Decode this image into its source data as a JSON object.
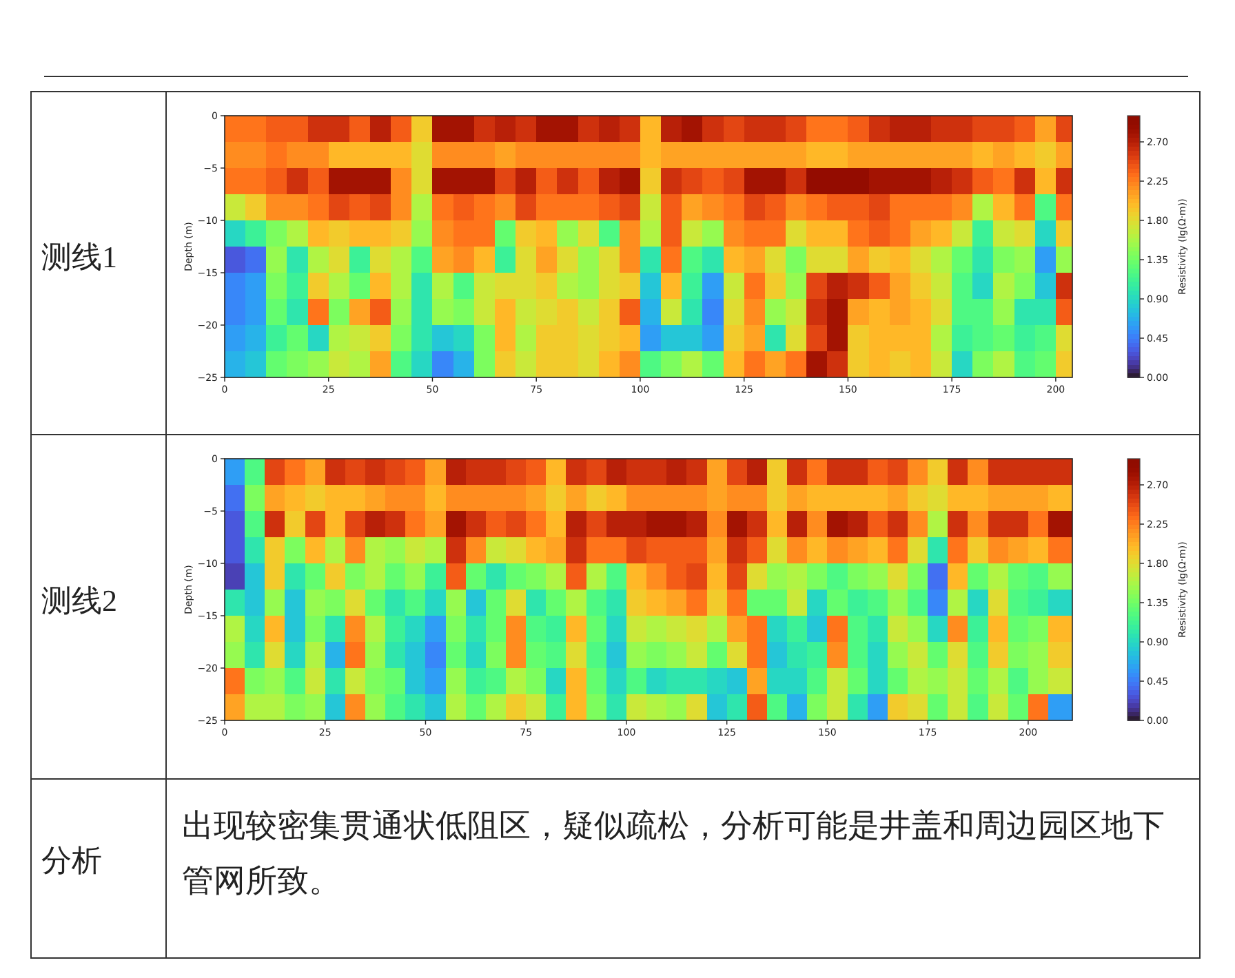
{
  "chart_data": [
    {
      "type": "scatter",
      "marker": "square",
      "title": "测线1",
      "ylabel": "Depth (m)",
      "clabel": "Resistivity (lg(Ω·m))",
      "x": [
        2.5,
        7.5,
        12.5,
        17.5,
        22.5,
        27.5,
        32.5,
        37.5,
        42.5,
        47.5,
        52.5,
        57.5,
        62.5,
        67.5,
        72.5,
        77.5,
        82.5,
        87.5,
        92.5,
        97.5,
        102.5,
        107.5,
        112.5,
        117.5,
        122.5,
        127.5,
        132.5,
        137.5,
        142.5,
        147.5,
        152.5,
        157.5,
        162.5,
        167.5,
        172.5,
        177.5,
        182.5,
        187.5,
        192.5,
        197.5,
        202.5,
        2.5,
        7.5,
        12.5,
        17.5,
        22.5,
        27.5,
        32.5,
        37.5,
        42.5,
        47.5,
        52.5,
        57.5,
        62.5,
        67.5,
        72.5,
        77.5,
        82.5,
        87.5,
        92.5,
        97.5,
        102.5,
        107.5,
        112.5,
        117.5,
        122.5,
        127.5,
        132.5,
        137.5,
        142.5,
        147.5,
        152.5,
        157.5,
        162.5,
        167.5,
        172.5,
        177.5,
        182.5,
        187.5,
        192.5,
        197.5,
        202.5,
        2.5,
        7.5,
        12.5,
        17.5,
        22.5,
        27.5,
        32.5,
        37.5,
        42.5,
        47.5,
        52.5,
        57.5,
        62.5,
        67.5,
        72.5,
        77.5,
        82.5,
        87.5,
        92.5,
        97.5,
        102.5,
        107.5,
        112.5,
        117.5,
        122.5,
        127.5,
        132.5,
        137.5,
        142.5,
        147.5,
        152.5,
        157.5,
        162.5,
        167.5,
        172.5,
        177.5,
        182.5,
        187.5,
        192.5,
        197.5,
        202.5,
        2.5,
        7.5,
        12.5,
        17.5,
        22.5,
        27.5,
        32.5,
        37.5,
        42.5,
        47.5,
        52.5,
        57.5,
        62.5,
        67.5,
        72.5,
        77.5,
        82.5,
        87.5,
        92.5,
        97.5,
        102.5,
        107.5,
        112.5,
        117.5,
        122.5,
        127.5,
        132.5,
        137.5,
        142.5,
        147.5,
        152.5,
        157.5,
        162.5,
        167.5,
        172.5,
        177.5,
        182.5,
        187.5,
        192.5,
        197.5,
        202.5,
        2.5,
        7.5,
        12.5,
        17.5,
        22.5,
        27.5,
        32.5,
        37.5,
        42.5,
        47.5,
        52.5,
        57.5,
        62.5,
        67.5,
        72.5,
        77.5,
        82.5,
        87.5,
        92.5,
        97.5,
        102.5,
        107.5,
        112.5,
        117.5,
        122.5,
        127.5,
        132.5,
        137.5,
        142.5,
        147.5,
        152.5,
        157.5,
        162.5,
        167.5,
        172.5,
        177.5,
        182.5,
        187.5,
        192.5,
        197.5,
        202.5,
        2.5,
        7.5,
        12.5,
        17.5,
        22.5,
        27.5,
        32.5,
        37.5,
        42.5,
        47.5,
        52.5,
        57.5,
        62.5,
        67.5,
        72.5,
        77.5,
        82.5,
        87.5,
        92.5,
        97.5,
        102.5,
        107.5,
        112.5,
        117.5,
        122.5,
        127.5,
        132.5,
        137.5,
        142.5,
        147.5,
        152.5,
        157.5,
        162.5,
        167.5,
        172.5,
        177.5,
        182.5,
        187.5,
        192.5,
        197.5,
        202.5,
        2.5,
        7.5,
        12.5,
        17.5,
        22.5,
        27.5,
        32.5,
        37.5,
        42.5,
        47.5,
        52.5,
        57.5,
        62.5,
        67.5,
        72.5,
        77.5,
        82.5,
        87.5,
        92.5,
        97.5,
        102.5,
        107.5,
        112.5,
        117.5,
        122.5,
        127.5,
        132.5,
        137.5,
        142.5,
        147.5,
        152.5,
        157.5,
        162.5,
        167.5,
        172.5,
        177.5,
        182.5,
        187.5,
        192.5,
        197.5,
        202.5,
        2.5,
        7.5,
        12.5,
        17.5,
        22.5,
        27.5,
        32.5,
        37.5,
        42.5,
        47.5,
        52.5,
        57.5,
        62.5,
        67.5,
        72.5,
        77.5,
        82.5,
        87.5,
        92.5,
        97.5,
        102.5,
        107.5,
        112.5,
        117.5,
        122.5,
        127.5,
        132.5,
        137.5,
        142.5,
        147.5,
        152.5,
        157.5,
        162.5,
        167.5,
        172.5,
        177.5,
        182.5,
        187.5,
        192.5,
        197.5,
        202.5,
        2.5,
        7.5,
        12.5,
        17.5,
        22.5,
        27.5,
        32.5,
        37.5,
        42.5,
        47.5,
        52.5,
        57.5,
        62.5,
        67.5,
        72.5,
        77.5,
        82.5,
        87.5,
        92.5,
        97.5,
        102.5,
        107.5,
        112.5,
        117.5,
        122.5,
        127.5,
        132.5,
        137.5,
        142.5,
        147.5,
        152.5,
        157.5,
        162.5,
        167.5,
        172.5,
        177.5,
        182.5,
        187.5,
        192.5,
        197.5,
        202.5,
        2.5,
        7.5,
        12.5,
        17.5,
        22.5,
        27.5,
        32.5,
        37.5,
        42.5,
        47.5,
        52.5,
        57.5,
        62.5,
        67.5,
        72.5,
        77.5,
        82.5,
        87.5,
        92.5,
        97.5,
        102.5,
        107.5,
        112.5,
        117.5,
        122.5,
        127.5,
        132.5,
        137.5,
        142.5,
        147.5,
        152.5,
        157.5,
        162.5,
        167.5,
        172.5,
        177.5,
        182.5,
        187.5,
        192.5,
        197.5,
        202.5
      ],
      "values": [
        -1.25,
        -1.25,
        -1.25,
        -1.25,
        -1.25,
        -1.25,
        -1.25,
        -1.25,
        -1.25,
        -1.25,
        -1.25,
        -1.25,
        -1.25,
        -1.25,
        -1.25,
        -1.25,
        -1.25,
        -1.25,
        -1.25,
        -1.25,
        -1.25,
        -1.25,
        -1.25,
        -1.25,
        -1.25,
        -1.25,
        -1.25,
        -1.25,
        -1.25,
        -1.25,
        -1.25,
        -1.25,
        -1.25,
        -1.25,
        -1.25,
        -1.25,
        -1.25,
        -1.25,
        -1.25,
        -1.25,
        -1.25,
        -3.75,
        -3.75,
        -3.75,
        -3.75,
        -3.75,
        -3.75,
        -3.75,
        -3.75,
        -3.75,
        -3.75,
        -3.75,
        -3.75,
        -3.75,
        -3.75,
        -3.75,
        -3.75,
        -3.75,
        -3.75,
        -3.75,
        -3.75,
        -3.75,
        -3.75,
        -3.75,
        -3.75,
        -3.75,
        -3.75,
        -3.75,
        -3.75,
        -3.75,
        -3.75,
        -3.75,
        -3.75,
        -3.75,
        -3.75,
        -3.75,
        -3.75,
        -3.75,
        -3.75,
        -3.75,
        -3.75,
        -3.75,
        -6.25,
        -6.25,
        -6.25,
        -6.25,
        -6.25,
        -6.25,
        -6.25,
        -6.25,
        -6.25,
        -6.25,
        -6.25,
        -6.25,
        -6.25,
        -6.25,
        -6.25,
        -6.25,
        -6.25,
        -6.25,
        -6.25,
        -6.25,
        -6.25,
        -6.25,
        -6.25,
        -6.25,
        -6.25,
        -6.25,
        -6.25,
        -6.25,
        -6.25,
        -6.25,
        -6.25,
        -6.25,
        -6.25,
        -6.25,
        -6.25,
        -6.25,
        -6.25,
        -6.25,
        -6.25,
        -6.25,
        -6.25,
        -8.75,
        -8.75,
        -8.75,
        -8.75,
        -8.75,
        -8.75,
        -8.75,
        -8.75,
        -8.75,
        -8.75,
        -8.75,
        -8.75,
        -8.75,
        -8.75,
        -8.75,
        -8.75,
        -8.75,
        -8.75,
        -8.75,
        -8.75,
        -8.75,
        -8.75,
        -8.75,
        -8.75,
        -8.75,
        -8.75,
        -8.75,
        -8.75,
        -8.75,
        -8.75,
        -8.75,
        -8.75,
        -8.75,
        -8.75,
        -8.75,
        -8.75,
        -8.75,
        -8.75,
        -8.75,
        -8.75,
        -8.75,
        -11.25,
        -11.25,
        -11.25,
        -11.25,
        -11.25,
        -11.25,
        -11.25,
        -11.25,
        -11.25,
        -11.25,
        -11.25,
        -11.25,
        -11.25,
        -11.25,
        -11.25,
        -11.25,
        -11.25,
        -11.25,
        -11.25,
        -11.25,
        -11.25,
        -11.25,
        -11.25,
        -11.25,
        -11.25,
        -11.25,
        -11.25,
        -11.25,
        -11.25,
        -11.25,
        -11.25,
        -11.25,
        -11.25,
        -11.25,
        -11.25,
        -11.25,
        -11.25,
        -11.25,
        -11.25,
        -11.25,
        -11.25,
        -13.75,
        -13.75,
        -13.75,
        -13.75,
        -13.75,
        -13.75,
        -13.75,
        -13.75,
        -13.75,
        -13.75,
        -13.75,
        -13.75,
        -13.75,
        -13.75,
        -13.75,
        -13.75,
        -13.75,
        -13.75,
        -13.75,
        -13.75,
        -13.75,
        -13.75,
        -13.75,
        -13.75,
        -13.75,
        -13.75,
        -13.75,
        -13.75,
        -13.75,
        -13.75,
        -13.75,
        -13.75,
        -13.75,
        -13.75,
        -13.75,
        -13.75,
        -13.75,
        -13.75,
        -13.75,
        -13.75,
        -13.75,
        -16.25,
        -16.25,
        -16.25,
        -16.25,
        -16.25,
        -16.25,
        -16.25,
        -16.25,
        -16.25,
        -16.25,
        -16.25,
        -16.25,
        -16.25,
        -16.25,
        -16.25,
        -16.25,
        -16.25,
        -16.25,
        -16.25,
        -16.25,
        -16.25,
        -16.25,
        -16.25,
        -16.25,
        -16.25,
        -16.25,
        -16.25,
        -16.25,
        -16.25,
        -16.25,
        -16.25,
        -16.25,
        -16.25,
        -16.25,
        -16.25,
        -16.25,
        -16.25,
        -16.25,
        -16.25,
        -16.25,
        -16.25,
        -18.75,
        -18.75,
        -18.75,
        -18.75,
        -18.75,
        -18.75,
        -18.75,
        -18.75,
        -18.75,
        -18.75,
        -18.75,
        -18.75,
        -18.75,
        -18.75,
        -18.75,
        -18.75,
        -18.75,
        -18.75,
        -18.75,
        -18.75,
        -18.75,
        -18.75,
        -18.75,
        -18.75,
        -18.75,
        -18.75,
        -18.75,
        -18.75,
        -18.75,
        -18.75,
        -18.75,
        -18.75,
        -18.75,
        -18.75,
        -18.75,
        -18.75,
        -18.75,
        -18.75,
        -18.75,
        -18.75,
        -18.75,
        -21.25,
        -21.25,
        -21.25,
        -21.25,
        -21.25,
        -21.25,
        -21.25,
        -21.25,
        -21.25,
        -21.25,
        -21.25,
        -21.25,
        -21.25,
        -21.25,
        -21.25,
        -21.25,
        -21.25,
        -21.25,
        -21.25,
        -21.25,
        -21.25,
        -21.25,
        -21.25,
        -21.25,
        -21.25,
        -21.25,
        -21.25,
        -21.25,
        -21.25,
        -21.25,
        -21.25,
        -21.25,
        -21.25,
        -21.25,
        -21.25,
        -21.25,
        -21.25,
        -21.25,
        -21.25,
        -21.25,
        -21.25,
        -23.75,
        -23.75,
        -23.75,
        -23.75,
        -23.75,
        -23.75,
        -23.75,
        -23.75,
        -23.75,
        -23.75,
        -23.75,
        -23.75,
        -23.75,
        -23.75,
        -23.75,
        -23.75,
        -23.75,
        -23.75,
        -23.75,
        -23.75,
        -23.75,
        -23.75,
        -23.75,
        -23.75,
        -23.75,
        -23.75,
        -23.75,
        -23.75,
        -23.75,
        -23.75,
        -23.75,
        -23.75,
        -23.75,
        -23.75,
        -23.75,
        -23.75,
        -23.75,
        -23.75,
        -23.75,
        -23.75,
        -23.75
      ],
      "cvalues": [
        2.3,
        2.3,
        2.4,
        2.4,
        2.6,
        2.6,
        2.4,
        2.7,
        2.4,
        1.9,
        2.8,
        2.8,
        2.6,
        2.7,
        2.6,
        2.8,
        2.8,
        2.6,
        2.7,
        2.6,
        2.0,
        2.7,
        2.8,
        2.6,
        2.5,
        2.6,
        2.6,
        2.5,
        2.3,
        2.3,
        2.4,
        2.6,
        2.7,
        2.7,
        2.6,
        2.6,
        2.5,
        2.5,
        2.4,
        2.1,
        2.5,
        2.2,
        2.2,
        2.3,
        2.2,
        2.2,
        2.0,
        2.0,
        2.0,
        2.0,
        1.8,
        2.2,
        2.2,
        2.2,
        2.1,
        2.2,
        2.2,
        2.2,
        2.2,
        2.2,
        2.2,
        2.0,
        2.1,
        2.1,
        2.1,
        2.1,
        2.1,
        2.1,
        2.1,
        2.0,
        2.0,
        2.1,
        2.1,
        2.1,
        2.1,
        2.1,
        2.1,
        2.0,
        2.1,
        2.0,
        1.9,
        2.1,
        2.3,
        2.3,
        2.4,
        2.6,
        2.4,
        2.8,
        2.8,
        2.8,
        2.2,
        1.8,
        2.8,
        2.8,
        2.8,
        2.5,
        2.7,
        2.4,
        2.6,
        2.4,
        2.7,
        2.8,
        1.9,
        2.6,
        2.5,
        2.4,
        2.5,
        2.8,
        2.8,
        2.6,
        2.9,
        2.9,
        2.9,
        2.8,
        2.8,
        2.8,
        2.7,
        2.6,
        2.4,
        2.3,
        2.6,
        2.0,
        2.6,
        1.7,
        1.9,
        2.2,
        2.2,
        2.3,
        2.5,
        2.4,
        2.5,
        2.2,
        1.6,
        2.3,
        2.4,
        2.3,
        2.2,
        2.5,
        2.3,
        2.3,
        2.3,
        2.4,
        2.5,
        1.7,
        2.4,
        2.1,
        2.2,
        2.3,
        2.5,
        2.4,
        2.2,
        2.3,
        2.4,
        2.4,
        2.5,
        2.3,
        2.3,
        2.3,
        2.2,
        1.6,
        2.0,
        2.3,
        1.2,
        2.3,
        0.9,
        1.1,
        1.4,
        1.6,
        2.0,
        1.9,
        2.0,
        2.0,
        1.9,
        1.5,
        2.2,
        2.3,
        2.3,
        1.3,
        1.9,
        2.0,
        1.5,
        1.8,
        1.2,
        2.2,
        1.6,
        2.4,
        1.7,
        1.5,
        2.2,
        2.3,
        2.3,
        1.8,
        2.0,
        2.0,
        2.3,
        2.4,
        2.3,
        2.1,
        2.0,
        1.7,
        1.1,
        1.7,
        1.8,
        0.9,
        1.9,
        0.3,
        0.4,
        1.5,
        1.0,
        1.6,
        1.8,
        1.1,
        1.8,
        1.6,
        1.2,
        2.1,
        2.2,
        2.0,
        1.1,
        1.8,
        2.1,
        1.8,
        1.5,
        1.8,
        2.2,
        1.0,
        2.3,
        1.2,
        1.0,
        2.0,
        2.1,
        1.8,
        1.4,
        1.8,
        1.8,
        2.1,
        1.9,
        2.0,
        1.8,
        1.6,
        1.3,
        1.0,
        1.4,
        1.5,
        0.6,
        1.5,
        0.5,
        0.6,
        1.4,
        1.1,
        1.9,
        1.6,
        1.3,
        2.0,
        1.6,
        1.0,
        1.6,
        1.2,
        1.7,
        1.8,
        1.8,
        1.9,
        1.6,
        1.5,
        1.8,
        1.9,
        0.8,
        2.0,
        1.1,
        0.6,
        1.7,
        2.3,
        1.9,
        1.5,
        2.5,
        2.7,
        2.6,
        2.4,
        2.1,
        1.9,
        1.7,
        1.2,
        0.9,
        1.6,
        1.4,
        0.8,
        2.6,
        0.5,
        0.6,
        1.3,
        1.0,
        2.3,
        1.4,
        2.1,
        2.4,
        1.5,
        1.0,
        1.5,
        1.4,
        1.7,
        2.0,
        1.7,
        1.8,
        1.9,
        1.7,
        1.9,
        2.4,
        0.7,
        1.7,
        1.0,
        0.5,
        1.8,
        2.2,
        1.5,
        1.7,
        2.6,
        2.8,
        2.1,
        2.0,
        2.1,
        2.0,
        1.8,
        1.2,
        1.2,
        1.5,
        1.0,
        1.0,
        2.4,
        0.6,
        0.7,
        1.1,
        1.3,
        0.9,
        1.6,
        1.7,
        1.9,
        1.4,
        1.0,
        0.8,
        0.9,
        1.4,
        2.0,
        1.6,
        1.9,
        1.9,
        1.8,
        1.9,
        2.0,
        0.6,
        0.8,
        0.8,
        0.6,
        1.9,
        2.1,
        1.0,
        1.8,
        2.5,
        2.8,
        1.9,
        2.0,
        2.0,
        2.0,
        1.6,
        1.1,
        1.2,
        1.3,
        1.1,
        1.2,
        1.8,
        0.7,
        0.8,
        1.3,
        1.4,
        1.5,
        1.7,
        1.6,
        2.1,
        1.2,
        0.9,
        0.5,
        0.7,
        1.4,
        1.9,
        1.7,
        1.9,
        1.9,
        1.8,
        2.0,
        2.2,
        1.2,
        1.4,
        1.6,
        1.3,
        2.0,
        2.3,
        2.1,
        2.3,
        2.8,
        2.6,
        1.9,
        2.0,
        1.9,
        2.0,
        1.7,
        0.9,
        1.4,
        1.6,
        1.2,
        1.3,
        1.9
      ],
      "xlim": [
        0,
        204
      ],
      "xticks": [
        0,
        25,
        50,
        75,
        100,
        125,
        150,
        175,
        200
      ],
      "ylim": [
        -25,
        0
      ],
      "yticks": [
        {
          "value": 0,
          "label": "0"
        },
        {
          "value": -5,
          "label": "−5"
        },
        {
          "value": -10,
          "label": "−10"
        },
        {
          "value": -15,
          "label": "−15"
        },
        {
          "value": -20,
          "label": "−20"
        },
        {
          "value": -25,
          "label": "−25"
        }
      ],
      "clim": [
        0,
        3.0
      ],
      "cticks": [
        {
          "value": 0,
          "label": "0.00"
        },
        {
          "value": 0.45,
          "label": "0.45"
        },
        {
          "value": 0.9,
          "label": "0.90"
        },
        {
          "value": 1.35,
          "label": "1.35"
        },
        {
          "value": 1.8,
          "label": "1.80"
        },
        {
          "value": 2.25,
          "label": "2.25"
        },
        {
          "value": 2.7,
          "label": "2.70"
        }
      ]
    },
    {
      "type": "scatter",
      "marker": "square",
      "title": "测线2",
      "ylabel": "Depth (m)",
      "clabel": "Resistivity (lg(Ω·m))",
      "x": [
        2.5,
        7.5,
        12.5,
        17.5,
        22.5,
        27.5,
        32.5,
        37.5,
        42.5,
        47.5,
        52.5,
        57.5,
        62.5,
        67.5,
        72.5,
        77.5,
        82.5,
        87.5,
        92.5,
        97.5,
        102.5,
        107.5,
        112.5,
        117.5,
        122.5,
        127.5,
        132.5,
        137.5,
        142.5,
        147.5,
        152.5,
        157.5,
        162.5,
        167.5,
        172.5,
        177.5,
        182.5,
        187.5,
        192.5,
        197.5,
        202.5,
        207.5,
        2.5,
        7.5,
        12.5,
        17.5,
        22.5,
        27.5,
        32.5,
        37.5,
        42.5,
        47.5,
        52.5,
        57.5,
        62.5,
        67.5,
        72.5,
        77.5,
        82.5,
        87.5,
        92.5,
        97.5,
        102.5,
        107.5,
        112.5,
        117.5,
        122.5,
        127.5,
        132.5,
        137.5,
        142.5,
        147.5,
        152.5,
        157.5,
        162.5,
        167.5,
        172.5,
        177.5,
        182.5,
        187.5,
        192.5,
        197.5,
        202.5,
        207.5,
        2.5,
        7.5,
        12.5,
        17.5,
        22.5,
        27.5,
        32.5,
        37.5,
        42.5,
        47.5,
        52.5,
        57.5,
        62.5,
        67.5,
        72.5,
        77.5,
        82.5,
        87.5,
        92.5,
        97.5,
        102.5,
        107.5,
        112.5,
        117.5,
        122.5,
        127.5,
        132.5,
        137.5,
        142.5,
        147.5,
        152.5,
        157.5,
        162.5,
        167.5,
        172.5,
        177.5,
        182.5,
        187.5,
        192.5,
        197.5,
        202.5,
        207.5,
        2.5,
        7.5,
        12.5,
        17.5,
        22.5,
        27.5,
        32.5,
        37.5,
        42.5,
        47.5,
        52.5,
        57.5,
        62.5,
        67.5,
        72.5,
        77.5,
        82.5,
        87.5,
        92.5,
        97.5,
        102.5,
        107.5,
        112.5,
        117.5,
        122.5,
        127.5,
        132.5,
        137.5,
        142.5,
        147.5,
        152.5,
        157.5,
        162.5,
        167.5,
        172.5,
        177.5,
        182.5,
        187.5,
        192.5,
        197.5,
        202.5,
        207.5,
        2.5,
        7.5,
        12.5,
        17.5,
        22.5,
        27.5,
        32.5,
        37.5,
        42.5,
        47.5,
        52.5,
        57.5,
        62.5,
        67.5,
        72.5,
        77.5,
        82.5,
        87.5,
        92.5,
        97.5,
        102.5,
        107.5,
        112.5,
        117.5,
        122.5,
        127.5,
        132.5,
        137.5,
        142.5,
        147.5,
        152.5,
        157.5,
        162.5,
        167.5,
        172.5,
        177.5,
        182.5,
        187.5,
        192.5,
        197.5,
        202.5,
        207.5,
        2.5,
        7.5,
        12.5,
        17.5,
        22.5,
        27.5,
        32.5,
        37.5,
        42.5,
        47.5,
        52.5,
        57.5,
        62.5,
        67.5,
        72.5,
        77.5,
        82.5,
        87.5,
        92.5,
        97.5,
        102.5,
        107.5,
        112.5,
        117.5,
        122.5,
        127.5,
        132.5,
        137.5,
        142.5,
        147.5,
        152.5,
        157.5,
        162.5,
        167.5,
        172.5,
        177.5,
        182.5,
        187.5,
        192.5,
        197.5,
        202.5,
        207.5,
        2.5,
        7.5,
        12.5,
        17.5,
        22.5,
        27.5,
        32.5,
        37.5,
        42.5,
        47.5,
        52.5,
        57.5,
        62.5,
        67.5,
        72.5,
        77.5,
        82.5,
        87.5,
        92.5,
        97.5,
        102.5,
        107.5,
        112.5,
        117.5,
        122.5,
        127.5,
        132.5,
        137.5,
        142.5,
        147.5,
        152.5,
        157.5,
        162.5,
        167.5,
        172.5,
        177.5,
        182.5,
        187.5,
        192.5,
        197.5,
        202.5,
        207.5,
        2.5,
        7.5,
        12.5,
        17.5,
        22.5,
        27.5,
        32.5,
        37.5,
        42.5,
        47.5,
        52.5,
        57.5,
        62.5,
        67.5,
        72.5,
        77.5,
        82.5,
        87.5,
        92.5,
        97.5,
        102.5,
        107.5,
        112.5,
        117.5,
        122.5,
        127.5,
        132.5,
        137.5,
        142.5,
        147.5,
        152.5,
        157.5,
        162.5,
        167.5,
        172.5,
        177.5,
        182.5,
        187.5,
        192.5,
        197.5,
        202.5,
        207.5,
        2.5,
        7.5,
        12.5,
        17.5,
        22.5,
        27.5,
        32.5,
        37.5,
        42.5,
        47.5,
        52.5,
        57.5,
        62.5,
        67.5,
        72.5,
        77.5,
        82.5,
        87.5,
        92.5,
        97.5,
        102.5,
        107.5,
        112.5,
        117.5,
        122.5,
        127.5,
        132.5,
        137.5,
        142.5,
        147.5,
        152.5,
        157.5,
        162.5,
        167.5,
        172.5,
        177.5,
        182.5,
        187.5,
        192.5,
        197.5,
        202.5,
        207.5,
        2.5,
        7.5,
        12.5,
        17.5,
        22.5,
        27.5,
        32.5,
        37.5,
        42.5,
        47.5,
        52.5,
        57.5,
        62.5,
        67.5,
        72.5,
        77.5,
        82.5,
        87.5,
        92.5,
        97.5,
        102.5,
        107.5,
        112.5,
        117.5,
        122.5,
        127.5,
        132.5,
        137.5,
        142.5,
        147.5,
        152.5,
        157.5,
        162.5,
        167.5,
        172.5,
        177.5,
        182.5,
        187.5,
        192.5,
        197.5,
        202.5,
        207.5
      ],
      "values": [
        -1.25,
        -1.25,
        -1.25,
        -1.25,
        -1.25,
        -1.25,
        -1.25,
        -1.25,
        -1.25,
        -1.25,
        -1.25,
        -1.25,
        -1.25,
        -1.25,
        -1.25,
        -1.25,
        -1.25,
        -1.25,
        -1.25,
        -1.25,
        -1.25,
        -1.25,
        -1.25,
        -1.25,
        -1.25,
        -1.25,
        -1.25,
        -1.25,
        -1.25,
        -1.25,
        -1.25,
        -1.25,
        -1.25,
        -1.25,
        -1.25,
        -1.25,
        -1.25,
        -1.25,
        -1.25,
        -1.25,
        -1.25,
        -1.25,
        -3.75,
        -3.75,
        -3.75,
        -3.75,
        -3.75,
        -3.75,
        -3.75,
        -3.75,
        -3.75,
        -3.75,
        -3.75,
        -3.75,
        -3.75,
        -3.75,
        -3.75,
        -3.75,
        -3.75,
        -3.75,
        -3.75,
        -3.75,
        -3.75,
        -3.75,
        -3.75,
        -3.75,
        -3.75,
        -3.75,
        -3.75,
        -3.75,
        -3.75,
        -3.75,
        -3.75,
        -3.75,
        -3.75,
        -3.75,
        -3.75,
        -3.75,
        -3.75,
        -3.75,
        -3.75,
        -3.75,
        -3.75,
        -3.75,
        -6.25,
        -6.25,
        -6.25,
        -6.25,
        -6.25,
        -6.25,
        -6.25,
        -6.25,
        -6.25,
        -6.25,
        -6.25,
        -6.25,
        -6.25,
        -6.25,
        -6.25,
        -6.25,
        -6.25,
        -6.25,
        -6.25,
        -6.25,
        -6.25,
        -6.25,
        -6.25,
        -6.25,
        -6.25,
        -6.25,
        -6.25,
        -6.25,
        -6.25,
        -6.25,
        -6.25,
        -6.25,
        -6.25,
        -6.25,
        -6.25,
        -6.25,
        -6.25,
        -6.25,
        -6.25,
        -6.25,
        -6.25,
        -6.25,
        -8.75,
        -8.75,
        -8.75,
        -8.75,
        -8.75,
        -8.75,
        -8.75,
        -8.75,
        -8.75,
        -8.75,
        -8.75,
        -8.75,
        -8.75,
        -8.75,
        -8.75,
        -8.75,
        -8.75,
        -8.75,
        -8.75,
        -8.75,
        -8.75,
        -8.75,
        -8.75,
        -8.75,
        -8.75,
        -8.75,
        -8.75,
        -8.75,
        -8.75,
        -8.75,
        -8.75,
        -8.75,
        -8.75,
        -8.75,
        -8.75,
        -8.75,
        -8.75,
        -8.75,
        -8.75,
        -8.75,
        -8.75,
        -8.75,
        -11.25,
        -11.25,
        -11.25,
        -11.25,
        -11.25,
        -11.25,
        -11.25,
        -11.25,
        -11.25,
        -11.25,
        -11.25,
        -11.25,
        -11.25,
        -11.25,
        -11.25,
        -11.25,
        -11.25,
        -11.25,
        -11.25,
        -11.25,
        -11.25,
        -11.25,
        -11.25,
        -11.25,
        -11.25,
        -11.25,
        -11.25,
        -11.25,
        -11.25,
        -11.25,
        -11.25,
        -11.25,
        -11.25,
        -11.25,
        -11.25,
        -11.25,
        -11.25,
        -11.25,
        -11.25,
        -11.25,
        -11.25,
        -11.25,
        -13.75,
        -13.75,
        -13.75,
        -13.75,
        -13.75,
        -13.75,
        -13.75,
        -13.75,
        -13.75,
        -13.75,
        -13.75,
        -13.75,
        -13.75,
        -13.75,
        -13.75,
        -13.75,
        -13.75,
        -13.75,
        -13.75,
        -13.75,
        -13.75,
        -13.75,
        -13.75,
        -13.75,
        -13.75,
        -13.75,
        -13.75,
        -13.75,
        -13.75,
        -13.75,
        -13.75,
        -13.75,
        -13.75,
        -13.75,
        -13.75,
        -13.75,
        -13.75,
        -13.75,
        -13.75,
        -13.75,
        -13.75,
        -13.75,
        -16.25,
        -16.25,
        -16.25,
        -16.25,
        -16.25,
        -16.25,
        -16.25,
        -16.25,
        -16.25,
        -16.25,
        -16.25,
        -16.25,
        -16.25,
        -16.25,
        -16.25,
        -16.25,
        -16.25,
        -16.25,
        -16.25,
        -16.25,
        -16.25,
        -16.25,
        -16.25,
        -16.25,
        -16.25,
        -16.25,
        -16.25,
        -16.25,
        -16.25,
        -16.25,
        -16.25,
        -16.25,
        -16.25,
        -16.25,
        -16.25,
        -16.25,
        -16.25,
        -16.25,
        -16.25,
        -16.25,
        -16.25,
        -16.25,
        -18.75,
        -18.75,
        -18.75,
        -18.75,
        -18.75,
        -18.75,
        -18.75,
        -18.75,
        -18.75,
        -18.75,
        -18.75,
        -18.75,
        -18.75,
        -18.75,
        -18.75,
        -18.75,
        -18.75,
        -18.75,
        -18.75,
        -18.75,
        -18.75,
        -18.75,
        -18.75,
        -18.75,
        -18.75,
        -18.75,
        -18.75,
        -18.75,
        -18.75,
        -18.75,
        -18.75,
        -18.75,
        -18.75,
        -18.75,
        -18.75,
        -18.75,
        -18.75,
        -18.75,
        -18.75,
        -18.75,
        -18.75,
        -18.75,
        -21.25,
        -21.25,
        -21.25,
        -21.25,
        -21.25,
        -21.25,
        -21.25,
        -21.25,
        -21.25,
        -21.25,
        -21.25,
        -21.25,
        -21.25,
        -21.25,
        -21.25,
        -21.25,
        -21.25,
        -21.25,
        -21.25,
        -21.25,
        -21.25,
        -21.25,
        -21.25,
        -21.25,
        -21.25,
        -21.25,
        -21.25,
        -21.25,
        -21.25,
        -21.25,
        -21.25,
        -21.25,
        -21.25,
        -21.25,
        -21.25,
        -21.25,
        -21.25,
        -21.25,
        -21.25,
        -21.25,
        -21.25,
        -21.25,
        -23.75,
        -23.75,
        -23.75,
        -23.75,
        -23.75,
        -23.75,
        -23.75,
        -23.75,
        -23.75,
        -23.75,
        -23.75,
        -23.75,
        -23.75,
        -23.75,
        -23.75,
        -23.75,
        -23.75,
        -23.75,
        -23.75,
        -23.75,
        -23.75,
        -23.75,
        -23.75,
        -23.75,
        -23.75,
        -23.75,
        -23.75,
        -23.75,
        -23.75,
        -23.75,
        -23.75,
        -23.75,
        -23.75,
        -23.75,
        -23.75,
        -23.75,
        -23.75,
        -23.75,
        -23.75,
        -23.75,
        -23.75,
        -23.75
      ],
      "cvalues": [
        0.6,
        1.2,
        2.5,
        2.3,
        2.1,
        2.6,
        2.5,
        2.6,
        2.5,
        2.4,
        2.1,
        2.7,
        2.6,
        2.6,
        2.5,
        2.4,
        2.0,
        2.6,
        2.5,
        2.7,
        2.6,
        2.6,
        2.7,
        2.6,
        2.1,
        2.5,
        2.7,
        1.9,
        2.6,
        2.3,
        2.6,
        2.6,
        2.4,
        2.5,
        2.2,
        1.9,
        2.6,
        2.2,
        2.6,
        2.6,
        2.6,
        2.6,
        0.4,
        1.4,
        2.1,
        2.0,
        1.9,
        2.0,
        2.0,
        2.1,
        2.2,
        2.2,
        2.0,
        2.2,
        2.2,
        2.2,
        2.2,
        2.1,
        1.9,
        2.1,
        1.9,
        2.0,
        2.2,
        2.2,
        2.2,
        2.2,
        2.1,
        2.2,
        2.2,
        1.9,
        2.1,
        2.0,
        2.0,
        2.0,
        2.0,
        2.1,
        1.9,
        1.8,
        2.0,
        2.0,
        2.1,
        2.1,
        2.1,
        2.0,
        0.3,
        1.2,
        2.6,
        1.9,
        2.5,
        2.0,
        2.5,
        2.7,
        2.6,
        2.3,
        2.1,
        2.8,
        2.6,
        2.4,
        2.5,
        2.3,
        2.0,
        2.7,
        2.5,
        2.7,
        2.7,
        2.8,
        2.8,
        2.7,
        2.2,
        2.8,
        2.6,
        2.0,
        2.7,
        2.2,
        2.8,
        2.7,
        2.4,
        2.6,
        2.2,
        1.6,
        2.6,
        2.2,
        2.6,
        2.6,
        2.3,
        2.8,
        0.3,
        1.0,
        1.9,
        1.4,
        2.0,
        1.6,
        2.2,
        1.6,
        1.5,
        1.7,
        1.6,
        2.6,
        2.2,
        1.7,
        1.8,
        2.0,
        2.1,
        2.6,
        2.3,
        2.3,
        2.5,
        2.4,
        2.4,
        2.4,
        2.1,
        2.6,
        2.4,
        1.8,
        2.2,
        2.0,
        2.2,
        2.1,
        2.0,
        2.3,
        1.8,
        1.0,
        2.3,
        1.9,
        2.2,
        2.1,
        2.0,
        2.3,
        0.2,
        0.8,
        1.9,
        1.0,
        1.3,
        1.9,
        1.4,
        1.6,
        1.3,
        1.5,
        1.1,
        2.4,
        1.3,
        1.0,
        1.3,
        1.4,
        1.6,
        2.4,
        1.6,
        1.2,
        2.0,
        2.2,
        2.4,
        2.5,
        2.0,
        2.5,
        1.8,
        1.5,
        1.6,
        1.4,
        1.2,
        1.4,
        1.5,
        1.8,
        1.4,
        0.4,
        2.0,
        1.3,
        1.6,
        1.3,
        1.2,
        1.5,
        1.0,
        0.8,
        1.5,
        0.8,
        1.5,
        1.4,
        1.8,
        1.3,
        1.0,
        1.2,
        0.9,
        1.5,
        0.8,
        1.3,
        1.8,
        1.0,
        1.3,
        1.6,
        1.2,
        1.0,
        1.9,
        2.0,
        2.1,
        2.3,
        1.9,
        2.3,
        1.3,
        1.3,
        1.7,
        0.9,
        1.3,
        1.1,
        1.2,
        1.5,
        1.2,
        0.5,
        1.6,
        0.9,
        1.8,
        1.2,
        1.1,
        0.9,
        1.6,
        0.9,
        2.0,
        0.8,
        1.4,
        1.0,
        2.2,
        1.6,
        1.1,
        0.9,
        0.6,
        1.4,
        1.0,
        1.3,
        2.2,
        1.2,
        1.1,
        2.0,
        1.3,
        0.9,
        1.7,
        1.6,
        1.7,
        1.8,
        1.6,
        2.1,
        2.3,
        0.9,
        1.1,
        0.8,
        2.3,
        1.2,
        1.0,
        1.7,
        1.5,
        0.9,
        2.2,
        1.1,
        2.0,
        1.3,
        1.4,
        2.0,
        1.5,
        1.0,
        1.8,
        0.9,
        1.6,
        0.7,
        2.3,
        1.5,
        1.0,
        0.8,
        0.5,
        1.3,
        0.9,
        1.4,
        2.2,
        1.3,
        1.2,
        1.8,
        1.2,
        0.8,
        1.5,
        1.4,
        1.5,
        1.7,
        1.3,
        1.8,
        2.3,
        0.8,
        1.0,
        1.1,
        2.2,
        1.2,
        0.9,
        1.5,
        1.7,
        1.3,
        1.8,
        1.2,
        1.9,
        1.4,
        1.5,
        1.9,
        2.3,
        1.4,
        1.5,
        1.2,
        1.7,
        1.0,
        1.7,
        1.4,
        1.3,
        0.8,
        0.6,
        1.5,
        1.1,
        1.2,
        1.6,
        1.4,
        0.9,
        2.0,
        1.3,
        0.9,
        1.2,
        0.9,
        1.0,
        1.0,
        0.9,
        0.8,
        2.1,
        0.9,
        0.9,
        1.2,
        1.7,
        1.3,
        0.9,
        1.3,
        1.6,
        1.5,
        1.7,
        1.3,
        1.6,
        1.2,
        1.5,
        1.7,
        2.1,
        1.6,
        1.6,
        1.4,
        1.5,
        0.8,
        2.2,
        1.5,
        1.2,
        1.0,
        0.8,
        1.6,
        1.3,
        1.6,
        1.9,
        1.7,
        1.1,
        2.0,
        1.4,
        1.0,
        1.7,
        1.6,
        1.5,
        1.8,
        0.8,
        1.0,
        2.4,
        1.2,
        0.7,
        1.4,
        1.7,
        1.0,
        0.6,
        1.9,
        1.8,
        1.3,
        1.7,
        1.2,
        1.7,
        1.3,
        2.3,
        0.6
      ],
      "xlim": [
        0,
        211
      ],
      "xticks": [
        0,
        25,
        50,
        75,
        100,
        125,
        150,
        175,
        200
      ],
      "ylim": [
        -25,
        0
      ],
      "yticks": [
        {
          "value": 0,
          "label": "0"
        },
        {
          "value": -5,
          "label": "−5"
        },
        {
          "value": -10,
          "label": "−10"
        },
        {
          "value": -15,
          "label": "−15"
        },
        {
          "value": -20,
          "label": "−20"
        },
        {
          "value": -25,
          "label": "−25"
        }
      ],
      "clim": [
        0,
        3.0
      ],
      "cticks": [
        {
          "value": 0,
          "label": "0.00"
        },
        {
          "value": 0.45,
          "label": "0.45"
        },
        {
          "value": 0.9,
          "label": "0.90"
        },
        {
          "value": 1.35,
          "label": "1.35"
        },
        {
          "value": 1.8,
          "label": "1.80"
        },
        {
          "value": 2.25,
          "label": "2.25"
        },
        {
          "value": 2.7,
          "label": "2.70"
        }
      ]
    },
    {
      "type": "other",
      "title": "分析",
      "annotations": [
        "出现较密集贯通状低阻区，疑似疏松，分析可能是井盖和周边园区地下管网所致。"
      ]
    }
  ]
}
